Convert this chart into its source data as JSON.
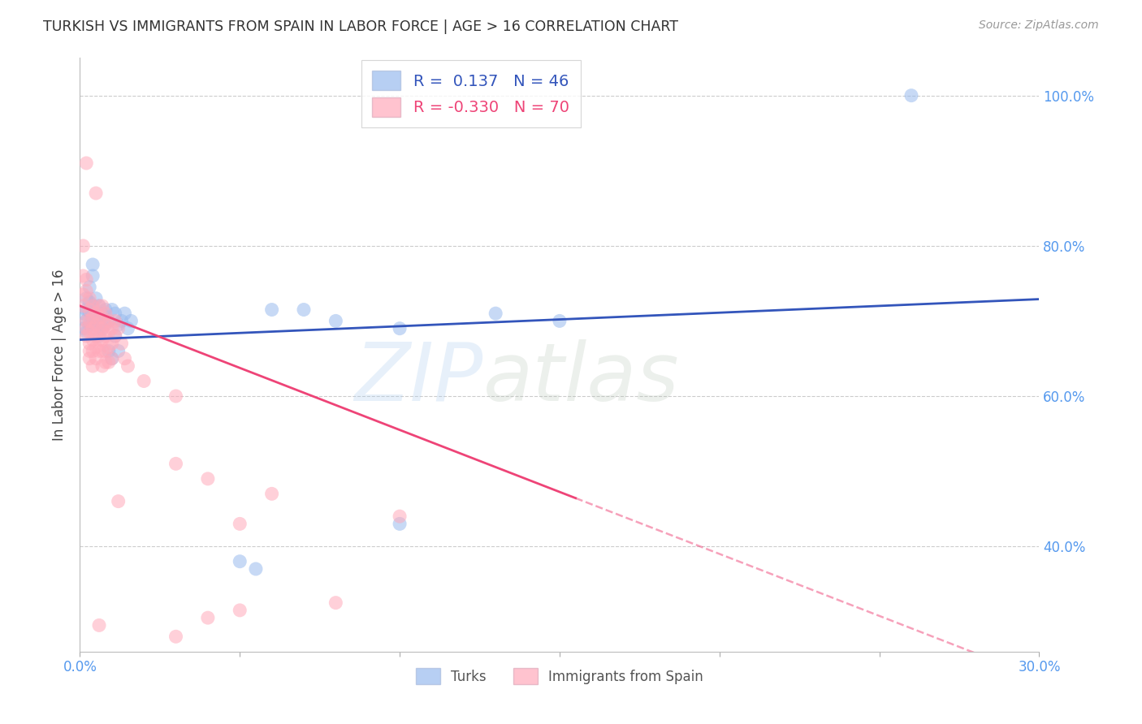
{
  "title": "TURKISH VS IMMIGRANTS FROM SPAIN IN LABOR FORCE | AGE > 16 CORRELATION CHART",
  "source": "Source: ZipAtlas.com",
  "ylabel_label": "In Labor Force | Age > 16",
  "legend_label1": "Turks",
  "legend_label2": "Immigrants from Spain",
  "R1": 0.137,
  "N1": 46,
  "R2": -0.33,
  "N2": 70,
  "blue_fill": "#99BBEE",
  "pink_fill": "#FFAABB",
  "blue_line": "#3355BB",
  "pink_line": "#EE4477",
  "axis_tick_color": "#5599EE",
  "grid_color": "#CCCCCC",
  "watermark_blue": "#AACCEE",
  "watermark_green": "#AABBAA",
  "title_color": "#333333",
  "ylabel_color": "#444444",
  "blue_points": [
    [
      0.001,
      0.69
    ],
    [
      0.001,
      0.71
    ],
    [
      0.002,
      0.685
    ],
    [
      0.002,
      0.7
    ],
    [
      0.002,
      0.715
    ],
    [
      0.002,
      0.73
    ],
    [
      0.003,
      0.695
    ],
    [
      0.003,
      0.712
    ],
    [
      0.003,
      0.725
    ],
    [
      0.003,
      0.745
    ],
    [
      0.004,
      0.7
    ],
    [
      0.004,
      0.72
    ],
    [
      0.004,
      0.76
    ],
    [
      0.004,
      0.775
    ],
    [
      0.005,
      0.695
    ],
    [
      0.005,
      0.71
    ],
    [
      0.005,
      0.73
    ],
    [
      0.006,
      0.68
    ],
    [
      0.006,
      0.705
    ],
    [
      0.006,
      0.72
    ],
    [
      0.007,
      0.69
    ],
    [
      0.007,
      0.71
    ],
    [
      0.008,
      0.695
    ],
    [
      0.008,
      0.715
    ],
    [
      0.009,
      0.7
    ],
    [
      0.009,
      0.66
    ],
    [
      0.01,
      0.715
    ],
    [
      0.01,
      0.65
    ],
    [
      0.011,
      0.68
    ],
    [
      0.011,
      0.71
    ],
    [
      0.012,
      0.695
    ],
    [
      0.012,
      0.66
    ],
    [
      0.013,
      0.7
    ],
    [
      0.014,
      0.71
    ],
    [
      0.015,
      0.69
    ],
    [
      0.016,
      0.7
    ],
    [
      0.05,
      0.38
    ],
    [
      0.055,
      0.37
    ],
    [
      0.06,
      0.715
    ],
    [
      0.07,
      0.715
    ],
    [
      0.08,
      0.7
    ],
    [
      0.1,
      0.69
    ],
    [
      0.13,
      0.71
    ],
    [
      0.15,
      0.7
    ],
    [
      0.26,
      1.0
    ],
    [
      0.1,
      0.43
    ]
  ],
  "pink_points": [
    [
      0.001,
      0.8
    ],
    [
      0.001,
      0.76
    ],
    [
      0.001,
      0.735
    ],
    [
      0.001,
      0.72
    ],
    [
      0.002,
      0.7
    ],
    [
      0.002,
      0.69
    ],
    [
      0.002,
      0.68
    ],
    [
      0.002,
      0.74
    ],
    [
      0.002,
      0.755
    ],
    [
      0.002,
      0.91
    ],
    [
      0.003,
      0.73
    ],
    [
      0.003,
      0.7
    ],
    [
      0.003,
      0.715
    ],
    [
      0.003,
      0.685
    ],
    [
      0.003,
      0.67
    ],
    [
      0.003,
      0.66
    ],
    [
      0.003,
      0.65
    ],
    [
      0.004,
      0.72
    ],
    [
      0.004,
      0.705
    ],
    [
      0.004,
      0.69
    ],
    [
      0.004,
      0.675
    ],
    [
      0.004,
      0.66
    ],
    [
      0.004,
      0.64
    ],
    [
      0.005,
      0.71
    ],
    [
      0.005,
      0.695
    ],
    [
      0.005,
      0.68
    ],
    [
      0.005,
      0.665
    ],
    [
      0.005,
      0.65
    ],
    [
      0.006,
      0.72
    ],
    [
      0.006,
      0.705
    ],
    [
      0.006,
      0.69
    ],
    [
      0.006,
      0.675
    ],
    [
      0.006,
      0.66
    ],
    [
      0.006,
      0.295
    ],
    [
      0.007,
      0.72
    ],
    [
      0.007,
      0.705
    ],
    [
      0.007,
      0.69
    ],
    [
      0.007,
      0.675
    ],
    [
      0.007,
      0.66
    ],
    [
      0.007,
      0.64
    ],
    [
      0.008,
      0.71
    ],
    [
      0.008,
      0.695
    ],
    [
      0.008,
      0.68
    ],
    [
      0.008,
      0.66
    ],
    [
      0.008,
      0.645
    ],
    [
      0.009,
      0.7
    ],
    [
      0.009,
      0.685
    ],
    [
      0.009,
      0.665
    ],
    [
      0.009,
      0.645
    ],
    [
      0.01,
      0.69
    ],
    [
      0.01,
      0.67
    ],
    [
      0.01,
      0.65
    ],
    [
      0.011,
      0.7
    ],
    [
      0.011,
      0.68
    ],
    [
      0.012,
      0.69
    ],
    [
      0.012,
      0.46
    ],
    [
      0.013,
      0.67
    ],
    [
      0.014,
      0.65
    ],
    [
      0.015,
      0.64
    ],
    [
      0.02,
      0.62
    ],
    [
      0.03,
      0.6
    ],
    [
      0.04,
      0.49
    ],
    [
      0.05,
      0.43
    ],
    [
      0.06,
      0.47
    ],
    [
      0.08,
      0.325
    ],
    [
      0.1,
      0.44
    ],
    [
      0.005,
      0.87
    ],
    [
      0.03,
      0.28
    ],
    [
      0.04,
      0.305
    ],
    [
      0.03,
      0.51
    ],
    [
      0.05,
      0.315
    ]
  ],
  "xlim": [
    0.0,
    0.3
  ],
  "ylim": [
    0.26,
    1.05
  ],
  "yticks": [
    0.4,
    0.6,
    0.8,
    1.0
  ],
  "ytick_labels": [
    "40.0%",
    "60.0%",
    "80.0%",
    "100.0%"
  ],
  "xticks": [
    0.0,
    0.05,
    0.1,
    0.15,
    0.2,
    0.25,
    0.3
  ],
  "xtick_labels": [
    "0.0%",
    "",
    "",
    "",
    "",
    "",
    "30.0%"
  ],
  "figsize": [
    14.06,
    8.92
  ],
  "dpi": 100
}
